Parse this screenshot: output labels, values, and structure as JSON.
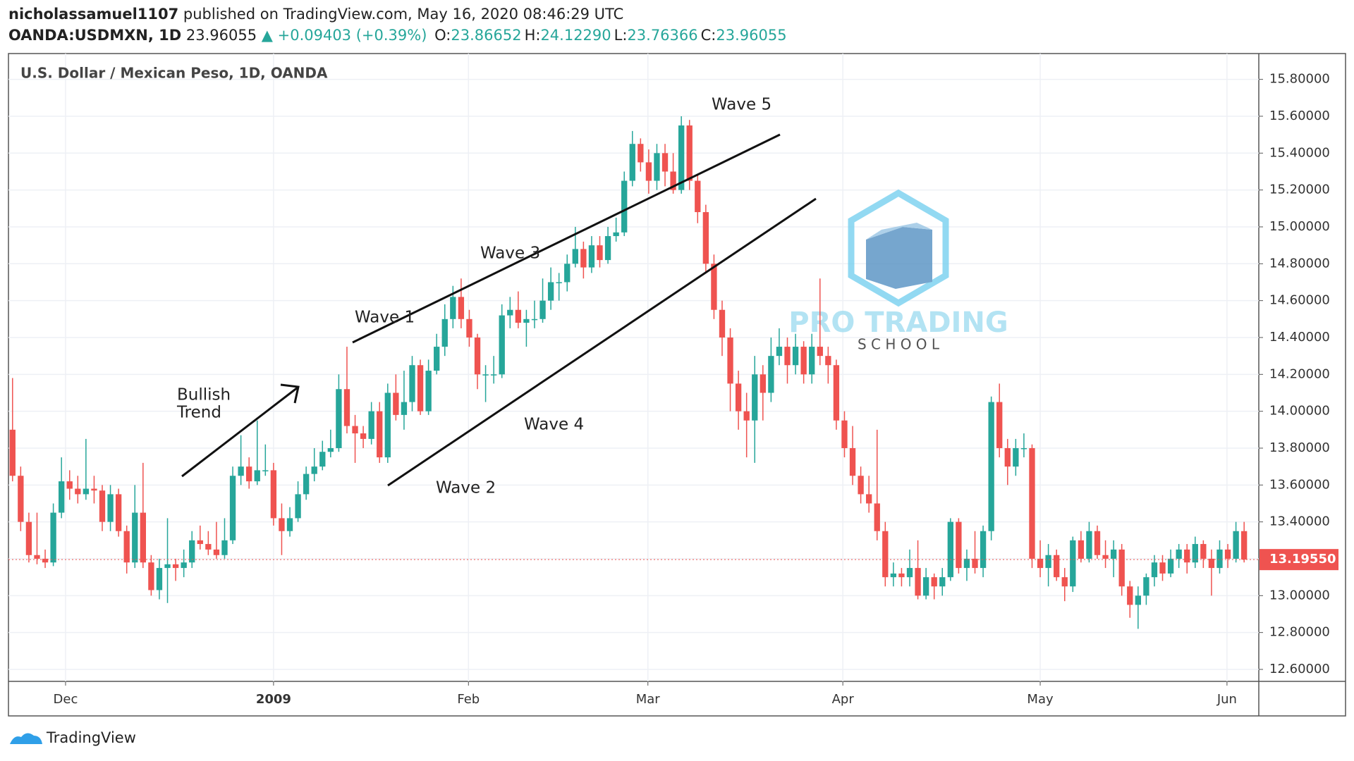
{
  "header": {
    "author": "nicholassamuel1107",
    "published": "published on TradingView.com, May 16, 2020 08:46:29 UTC",
    "symbol": "OANDA:USDMXN, 1D",
    "price": "23.96055",
    "change": "▲ +0.09403 (+0.39%)",
    "ohlc": [
      {
        "label": "O:",
        "value": "23.86652"
      },
      {
        "label": "H:",
        "value": "24.12290"
      },
      {
        "label": "L:",
        "value": "23.76366"
      },
      {
        "label": "C:",
        "value": "23.96055"
      }
    ]
  },
  "watermark": {
    "title": "PRO TRADING",
    "subtitle": "S C H O O L"
  },
  "footer": "TradingView",
  "chart_data": {
    "type": "candlestick",
    "title": "U.S. Dollar / Mexican Peso, 1D, OANDA",
    "up_color": "#26a69a",
    "down_color": "#ef5350",
    "grid": true,
    "annotations": [
      "Wave 5",
      "Wave 3",
      "Wave 1",
      "Bullish",
      "Trend",
      "Wave 4",
      "Wave 2"
    ],
    "last_price": {
      "value": 13.1955,
      "label": "13.19550"
    },
    "xlim": [
      -0.5,
      152.8
    ],
    "xticks": [
      {
        "value": 6.5,
        "label": "Dec"
      },
      {
        "value": 32,
        "label": "2009"
      },
      {
        "value": 55.9,
        "label": "Feb"
      },
      {
        "value": 77.9,
        "label": "Mar"
      },
      {
        "value": 101.8,
        "label": "Apr"
      },
      {
        "value": 126,
        "label": "May"
      },
      {
        "value": 148.9,
        "label": "Jun"
      }
    ],
    "ylim": [
      12.535,
      15.94
    ],
    "yticks": [
      {
        "value": 12.6,
        "label": "12.60000"
      },
      {
        "value": 12.8,
        "label": "12.80000"
      },
      {
        "value": 13,
        "label": "13.00000"
      },
      {
        "value": 13.2,
        "label": "13.20000"
      },
      {
        "value": 13.4,
        "label": "13.40000"
      },
      {
        "value": 13.6,
        "label": "13.60000"
      },
      {
        "value": 13.8,
        "label": "13.80000"
      },
      {
        "value": 14,
        "label": "14.00000"
      },
      {
        "value": 14.2,
        "label": "14.20000"
      },
      {
        "value": 14.4,
        "label": "14.40000"
      },
      {
        "value": 14.6,
        "label": "14.60000"
      },
      {
        "value": 14.8,
        "label": "14.80000"
      },
      {
        "value": 15,
        "label": "15.00000"
      },
      {
        "value": 15.2,
        "label": "15.20000"
      },
      {
        "value": 15.4,
        "label": "15.40000"
      },
      {
        "value": 15.6,
        "label": "15.60000"
      },
      {
        "value": 15.8,
        "label": "15.80000"
      }
    ],
    "values": [
      [
        13.9,
        14.18,
        13.62,
        13.65
      ],
      [
        13.65,
        13.7,
        13.35,
        13.4
      ],
      [
        13.4,
        13.45,
        13.18,
        13.22
      ],
      [
        13.22,
        13.45,
        13.17,
        13.2
      ],
      [
        13.2,
        13.25,
        13.15,
        13.18
      ],
      [
        13.18,
        13.5,
        13.16,
        13.45
      ],
      [
        13.45,
        13.75,
        13.42,
        13.62
      ],
      [
        13.62,
        13.68,
        13.52,
        13.58
      ],
      [
        13.58,
        13.65,
        13.5,
        13.55
      ],
      [
        13.55,
        13.85,
        13.52,
        13.58
      ],
      [
        13.58,
        13.65,
        13.5,
        13.57
      ],
      [
        13.57,
        13.6,
        13.35,
        13.4
      ],
      [
        13.4,
        13.6,
        13.35,
        13.55
      ],
      [
        13.55,
        13.58,
        13.32,
        13.35
      ],
      [
        13.35,
        13.38,
        13.12,
        13.18
      ],
      [
        13.18,
        13.6,
        13.15,
        13.45
      ],
      [
        13.45,
        13.72,
        13.15,
        13.18
      ],
      [
        13.18,
        13.22,
        13.0,
        13.03
      ],
      [
        13.03,
        13.2,
        12.98,
        13.15
      ],
      [
        13.15,
        13.42,
        12.96,
        13.17
      ],
      [
        13.17,
        13.2,
        13.08,
        13.15
      ],
      [
        13.15,
        13.25,
        13.1,
        13.18
      ],
      [
        13.18,
        13.35,
        13.15,
        13.3
      ],
      [
        13.3,
        13.38,
        13.25,
        13.28
      ],
      [
        13.28,
        13.35,
        13.22,
        13.25
      ],
      [
        13.25,
        13.4,
        13.2,
        13.22
      ],
      [
        13.22,
        13.42,
        13.2,
        13.3
      ],
      [
        13.3,
        13.7,
        13.28,
        13.65
      ],
      [
        13.65,
        13.87,
        13.6,
        13.7
      ],
      [
        13.7,
        13.75,
        13.58,
        13.62
      ],
      [
        13.62,
        13.95,
        13.6,
        13.68
      ],
      [
        13.68,
        13.82,
        13.65,
        13.68
      ],
      [
        13.68,
        13.72,
        13.38,
        13.42
      ],
      [
        13.42,
        13.5,
        13.22,
        13.35
      ],
      [
        13.35,
        13.48,
        13.32,
        13.42
      ],
      [
        13.42,
        13.62,
        13.4,
        13.55
      ],
      [
        13.55,
        13.7,
        13.52,
        13.66
      ],
      [
        13.66,
        13.8,
        13.62,
        13.7
      ],
      [
        13.7,
        13.84,
        13.68,
        13.78
      ],
      [
        13.78,
        13.9,
        13.75,
        13.8
      ],
      [
        13.8,
        14.2,
        13.78,
        14.12
      ],
      [
        14.12,
        14.35,
        13.88,
        13.92
      ],
      [
        13.92,
        13.98,
        13.72,
        13.88
      ],
      [
        13.88,
        13.92,
        13.8,
        13.85
      ],
      [
        13.85,
        14.05,
        13.82,
        14.0
      ],
      [
        14.0,
        14.05,
        13.72,
        13.75
      ],
      [
        13.75,
        14.15,
        13.72,
        14.1
      ],
      [
        14.1,
        14.2,
        13.95,
        13.98
      ],
      [
        13.98,
        14.22,
        13.9,
        14.05
      ],
      [
        14.05,
        14.3,
        14.0,
        14.25
      ],
      [
        14.25,
        14.28,
        13.98,
        14.0
      ],
      [
        14.0,
        14.28,
        13.98,
        14.22
      ],
      [
        14.22,
        14.42,
        14.2,
        14.35
      ],
      [
        14.35,
        14.58,
        14.3,
        14.5
      ],
      [
        14.5,
        14.68,
        14.45,
        14.62
      ],
      [
        14.62,
        14.72,
        14.45,
        14.5
      ],
      [
        14.5,
        14.55,
        14.35,
        14.4
      ],
      [
        14.4,
        14.42,
        14.12,
        14.2
      ],
      [
        14.2,
        14.25,
        14.05,
        14.2
      ],
      [
        14.2,
        14.3,
        14.15,
        14.2
      ],
      [
        14.2,
        14.58,
        14.18,
        14.52
      ],
      [
        14.52,
        14.62,
        14.45,
        14.55
      ],
      [
        14.55,
        14.65,
        14.45,
        14.48
      ],
      [
        14.48,
        14.55,
        14.35,
        14.5
      ],
      [
        14.5,
        14.6,
        14.45,
        14.5
      ],
      [
        14.5,
        14.72,
        14.48,
        14.6
      ],
      [
        14.6,
        14.78,
        14.55,
        14.7
      ],
      [
        14.7,
        14.75,
        14.6,
        14.7
      ],
      [
        14.7,
        14.85,
        14.65,
        14.8
      ],
      [
        14.8,
        15.0,
        14.78,
        14.88
      ],
      [
        14.88,
        14.92,
        14.72,
        14.78
      ],
      [
        14.78,
        14.95,
        14.75,
        14.9
      ],
      [
        14.9,
        14.95,
        14.78,
        14.82
      ],
      [
        14.82,
        15.0,
        14.8,
        14.95
      ],
      [
        14.95,
        15.05,
        14.92,
        14.97
      ],
      [
        14.97,
        15.3,
        14.95,
        15.25
      ],
      [
        15.25,
        15.52,
        15.22,
        15.45
      ],
      [
        15.45,
        15.48,
        15.3,
        15.35
      ],
      [
        15.35,
        15.42,
        15.18,
        15.25
      ],
      [
        15.25,
        15.45,
        15.2,
        15.4
      ],
      [
        15.4,
        15.45,
        15.22,
        15.3
      ],
      [
        15.3,
        15.4,
        15.18,
        15.2
      ],
      [
        15.2,
        15.6,
        15.18,
        15.55
      ],
      [
        15.55,
        15.58,
        15.2,
        15.25
      ],
      [
        15.25,
        15.28,
        15.02,
        15.08
      ],
      [
        15.08,
        15.12,
        14.75,
        14.8
      ],
      [
        14.8,
        14.85,
        14.5,
        14.55
      ],
      [
        14.55,
        14.6,
        14.3,
        14.4
      ],
      [
        14.4,
        14.45,
        14.0,
        14.15
      ],
      [
        14.15,
        14.22,
        13.9,
        14.0
      ],
      [
        14.0,
        14.1,
        13.75,
        13.95
      ],
      [
        13.95,
        14.3,
        13.72,
        14.2
      ],
      [
        14.2,
        14.25,
        13.95,
        14.1
      ],
      [
        14.1,
        14.4,
        14.05,
        14.3
      ],
      [
        14.3,
        14.45,
        14.25,
        14.35
      ],
      [
        14.35,
        14.4,
        14.15,
        14.25
      ],
      [
        14.25,
        14.42,
        14.2,
        14.35
      ],
      [
        14.35,
        14.38,
        14.15,
        14.2
      ],
      [
        14.2,
        14.42,
        14.15,
        14.35
      ],
      [
        14.35,
        14.72,
        14.25,
        14.3
      ],
      [
        14.3,
        14.35,
        14.15,
        14.25
      ],
      [
        14.25,
        14.28,
        13.9,
        13.95
      ],
      [
        13.95,
        14.0,
        13.75,
        13.8
      ],
      [
        13.8,
        13.92,
        13.6,
        13.65
      ],
      [
        13.65,
        13.7,
        13.5,
        13.55
      ],
      [
        13.55,
        13.65,
        13.45,
        13.5
      ],
      [
        13.5,
        13.9,
        13.3,
        13.35
      ],
      [
        13.35,
        13.4,
        13.05,
        13.1
      ],
      [
        13.1,
        13.18,
        13.05,
        13.12
      ],
      [
        13.12,
        13.15,
        13.05,
        13.1
      ],
      [
        13.1,
        13.25,
        13.05,
        13.15
      ],
      [
        13.15,
        13.3,
        12.98,
        13.0
      ],
      [
        13.0,
        13.15,
        12.98,
        13.1
      ],
      [
        13.1,
        13.12,
        12.98,
        13.05
      ],
      [
        13.05,
        13.15,
        13.0,
        13.1
      ],
      [
        13.1,
        13.42,
        13.08,
        13.4
      ],
      [
        13.4,
        13.42,
        13.12,
        13.15
      ],
      [
        13.15,
        13.25,
        13.08,
        13.2
      ],
      [
        13.2,
        13.35,
        13.12,
        13.15
      ],
      [
        13.15,
        13.38,
        13.1,
        13.35
      ],
      [
        13.35,
        14.08,
        13.3,
        14.05
      ],
      [
        14.05,
        14.15,
        13.75,
        13.8
      ],
      [
        13.8,
        13.85,
        13.6,
        13.7
      ],
      [
        13.7,
        13.85,
        13.65,
        13.8
      ],
      [
        13.8,
        13.88,
        13.75,
        13.8
      ],
      [
        13.8,
        13.82,
        13.15,
        13.2
      ],
      [
        13.2,
        13.3,
        13.1,
        13.15
      ],
      [
        13.15,
        13.28,
        13.05,
        13.22
      ],
      [
        13.22,
        13.25,
        13.08,
        13.1
      ],
      [
        13.1,
        13.15,
        12.97,
        13.05
      ],
      [
        13.05,
        13.32,
        13.02,
        13.3
      ],
      [
        13.3,
        13.35,
        13.18,
        13.2
      ],
      [
        13.2,
        13.4,
        13.18,
        13.35
      ],
      [
        13.35,
        13.38,
        13.2,
        13.22
      ],
      [
        13.22,
        13.3,
        13.15,
        13.2
      ],
      [
        13.2,
        13.3,
        13.1,
        13.25
      ],
      [
        13.25,
        13.28,
        13.0,
        13.05
      ],
      [
        13.05,
        13.08,
        12.88,
        12.95
      ],
      [
        12.95,
        13.05,
        12.82,
        13.0
      ],
      [
        13.0,
        13.12,
        12.95,
        13.1
      ],
      [
        13.1,
        13.22,
        13.05,
        13.18
      ],
      [
        13.18,
        13.22,
        13.08,
        13.12
      ],
      [
        13.12,
        13.25,
        13.1,
        13.2
      ],
      [
        13.2,
        13.28,
        13.15,
        13.25
      ],
      [
        13.25,
        13.28,
        13.12,
        13.18
      ],
      [
        13.18,
        13.32,
        13.15,
        13.28
      ],
      [
        13.28,
        13.3,
        13.15,
        13.2
      ],
      [
        13.2,
        13.25,
        13.0,
        13.15
      ],
      [
        13.15,
        13.3,
        13.12,
        13.25
      ],
      [
        13.25,
        13.28,
        13.15,
        13.2
      ],
      [
        13.2,
        13.4,
        13.18,
        13.35
      ],
      [
        13.35,
        13.4,
        13.18,
        13.1955
      ]
    ]
  }
}
